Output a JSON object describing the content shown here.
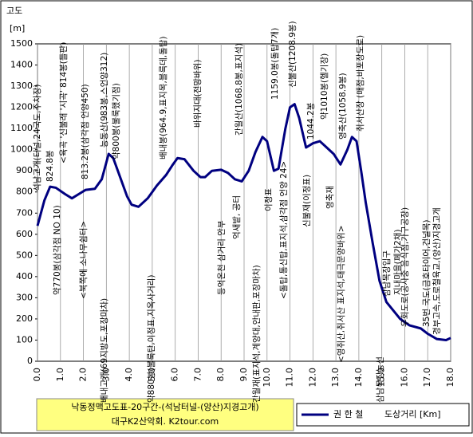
{
  "chart_data": {
    "type": "line",
    "ylabel": "고도",
    "yunit": "[m]",
    "xlabel": "도상거리 [Km]",
    "footer": [
      "낙동정맥고도표-20구간-(석남터널-(양산)지경고개)",
      "대구K2산악회. K2tour.com"
    ],
    "xlim": [
      0,
      18
    ],
    "ylim": [
      0,
      1500
    ],
    "xticks": [
      {
        "value": 0,
        "label": "0.0"
      },
      {
        "value": 1,
        "label": "1.0"
      },
      {
        "value": 2,
        "label": "2.0"
      },
      {
        "value": 3,
        "label": "3.0"
      },
      {
        "value": 4,
        "label": "4.0"
      },
      {
        "value": 5,
        "label": "5.0"
      },
      {
        "value": 6,
        "label": "6.0"
      },
      {
        "value": 7,
        "label": "7.0"
      },
      {
        "value": 8,
        "label": "8.0"
      },
      {
        "value": 9,
        "label": "9.0"
      },
      {
        "value": 10,
        "label": "10.0"
      },
      {
        "value": 11,
        "label": "11.0"
      },
      {
        "value": 12,
        "label": "12.0"
      },
      {
        "value": 13,
        "label": "13.0"
      },
      {
        "value": 14,
        "label": "14.0"
      },
      {
        "value": 15,
        "label": "15.0"
      },
      {
        "value": 16,
        "label": "16.0"
      },
      {
        "value": 17,
        "label": "17.0"
      },
      {
        "value": 18,
        "label": "18.0"
      }
    ],
    "yticks": [
      0,
      100,
      200,
      300,
      400,
      500,
      600,
      700,
      800,
      900,
      1000,
      1100,
      1200,
      1300,
      1400,
      1500
    ],
    "grid": true,
    "series": [
      {
        "name": "권 한 철",
        "color": "#000080",
        "x": [
          0,
          0.3,
          0.55,
          0.8,
          1.2,
          1.5,
          1.8,
          2.1,
          2.5,
          2.8,
          3.0,
          3.1,
          3.3,
          3.6,
          3.9,
          4.1,
          4.4,
          4.8,
          5.2,
          5.6,
          5.9,
          6.1,
          6.4,
          6.8,
          7.1,
          7.3,
          7.6,
          8.0,
          8.3,
          8.6,
          8.9,
          9.2,
          9.5,
          9.8,
          10.0,
          10.3,
          10.5,
          10.8,
          11.0,
          11.2,
          11.4,
          11.7,
          12.0,
          12.3,
          12.6,
          12.9,
          13.2,
          13.5,
          13.7,
          13.9,
          14.1,
          14.3,
          14.6,
          14.9,
          15.2,
          15.5,
          15.8,
          16.2,
          16.7,
          17.0,
          17.4,
          17.8,
          18.0
        ],
        "values": [
          640,
          760,
          825,
          820,
          790,
          770,
          790,
          810,
          815,
          860,
          940,
          980,
          960,
          870,
          780,
          740,
          730,
          770,
          830,
          880,
          930,
          960,
          955,
          900,
          870,
          870,
          900,
          905,
          890,
          860,
          850,
          900,
          990,
          1060,
          1040,
          900,
          910,
          1100,
          1200,
          1215,
          1150,
          1010,
          1030,
          1040,
          1010,
          980,
          930,
          1000,
          1060,
          1040,
          900,
          750,
          560,
          380,
          280,
          240,
          200,
          170,
          155,
          130,
          105,
          100,
          110
        ]
      }
    ],
    "annotations": [
      "석남고개(터널,24국도,주차장)",
      "824.8봉",
      "<육곡 '신불래 '시곡' 814봉(들판)",
      "813.2봉(삼각점 언양450)",
      "약770봉(삼각점 NO 10)",
      "<북쪽에 소나무쉼터>",
      "능동산(983봉,스언양312)",
      "약800봉(불룩했기점)",
      "배내고개(69지방도,포장마차)",
      "약880봉(불룩탄,이정표,지옥사거리)",
      "배내봉(964.9,표지목,블륵데,돌탑)",
      "바위지대(전망바위)",
      "간월산(1068.8봉,표지석)",
      "등억온천 삼거리 안부",
      "억새밭, 공터",
      "간월재(표지석,계양대,안내판,포장마차)",
      "1159.0봉(돌탑7개)",
      "신불산(1208.9봉)",
      "이정표",
      "<돌탑,통신탑,표지석,삼각점 언양 24>",
      "신불재(이정표)",
      "1044.2봉",
      "약1010봉(헬기장)",
      "영축산(1058.9봉)",
      "취서산장 (매점,비포장도로)",
      "영축재",
      "<영취산,취서산 표지석,태극문양바위>",
      "삼남목장입구",
      "삼남목장능선",
      "지내마을(폐가2채)",
      "우회도로(공사중 음식점,가구공장)",
      "35번 국도(금호타이어,건널목)",
      "경부고속,도로철육교,(양산)지경고개"
    ]
  }
}
